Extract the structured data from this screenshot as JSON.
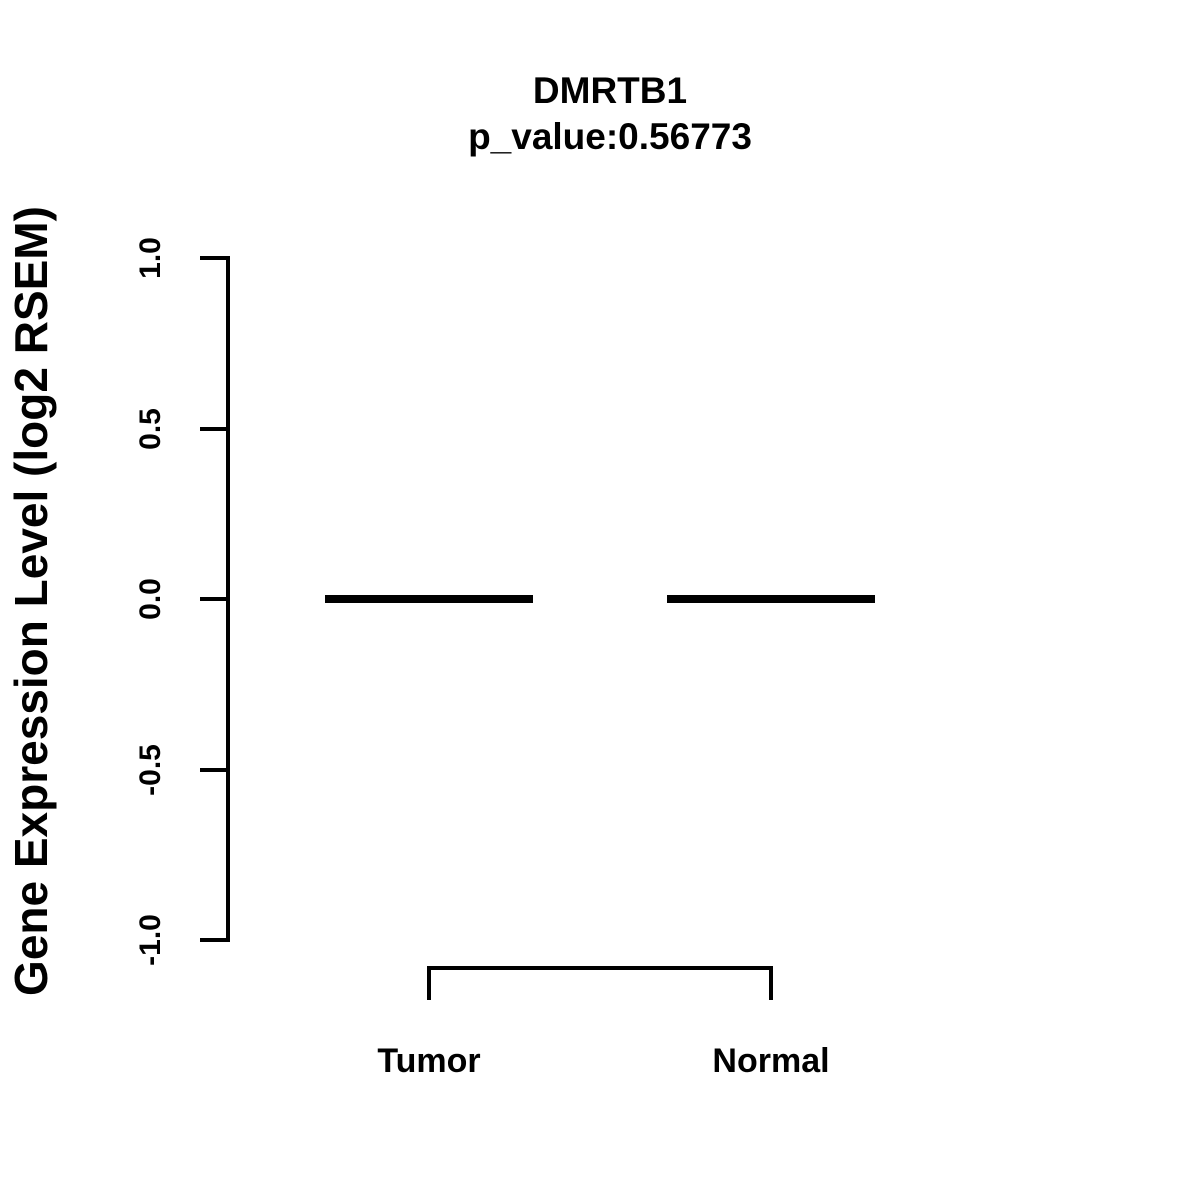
{
  "page": {
    "background_color": "#ffffff",
    "foreground_color": "#000000"
  },
  "chart_data": {
    "type": "boxplot",
    "title": "DMRTB1",
    "subtitle": "p_value:0.56773",
    "xlabel": "",
    "ylabel": "Gene Expression Level (log2 RSEM)",
    "categories": [
      "Tumor",
      "Normal"
    ],
    "series": [
      {
        "name": "Tumor",
        "median": 0.0,
        "q1": 0.0,
        "q3": 0.0,
        "whisker_low": 0.0,
        "whisker_high": 0.0
      },
      {
        "name": "Normal",
        "median": 0.0,
        "q1": 0.0,
        "q3": 0.0,
        "whisker_low": 0.0,
        "whisker_high": 0.0
      }
    ],
    "ylim": [
      -1.0,
      1.0
    ],
    "yticks": [
      1.0,
      0.5,
      0.0,
      -0.5,
      -1.0
    ],
    "ytick_labels": [
      "1.0",
      "0.5",
      "0.0",
      "-0.5",
      "-1.0"
    ],
    "grid": false,
    "legend": false,
    "line_color": "#000000"
  }
}
